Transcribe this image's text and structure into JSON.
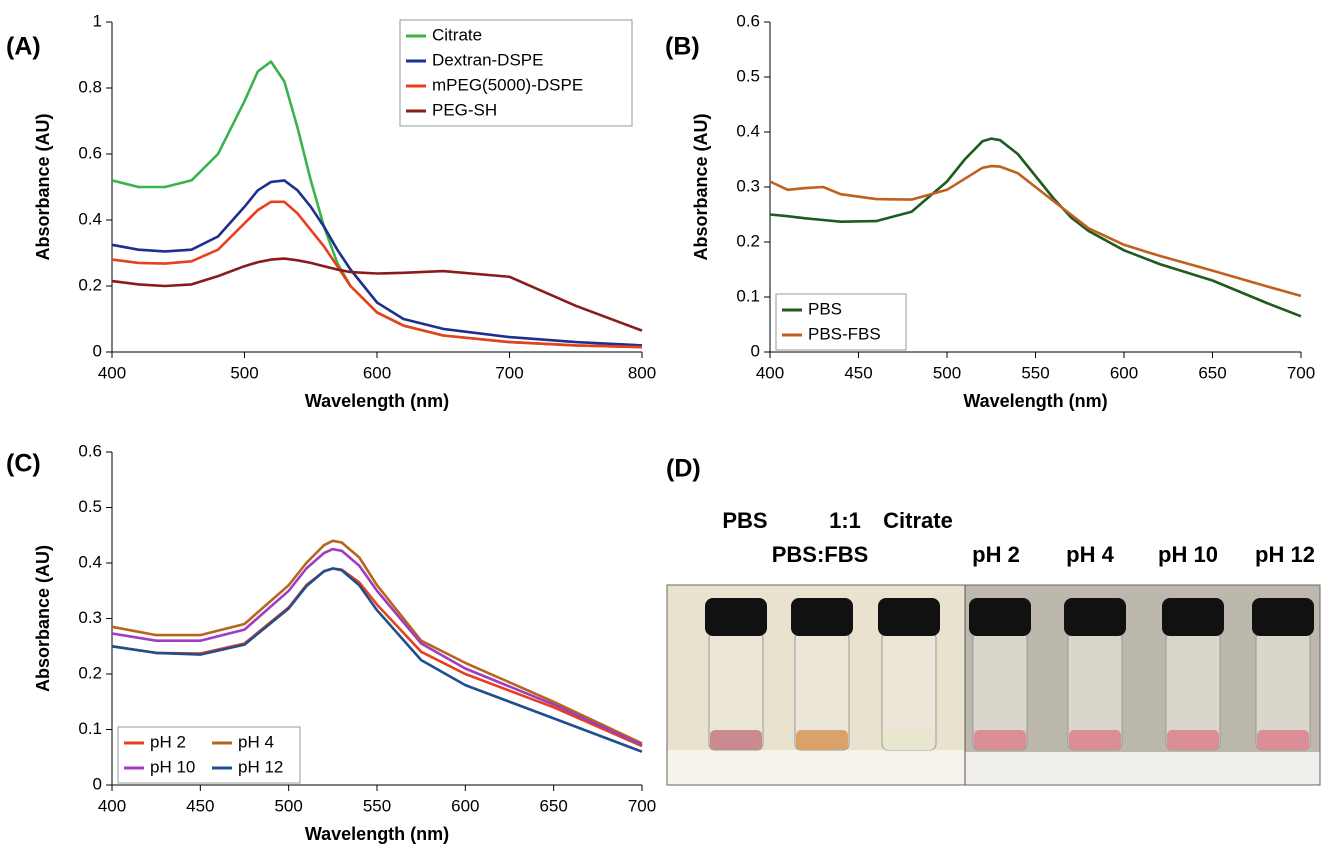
{
  "chart_data": [
    {
      "type": "line",
      "panel_label": "(A)",
      "xlabel": "Wavelength (nm)",
      "ylabel": "Absorbance (AU)",
      "xlim": [
        400,
        800
      ],
      "xticks": [
        400,
        500,
        600,
        700,
        800
      ],
      "ylim": [
        0,
        1
      ],
      "yticks": [
        0,
        0.2,
        0.4,
        0.6,
        0.8,
        1
      ],
      "legend": "upper right",
      "legend_columns": 1,
      "x": [
        400,
        420,
        440,
        460,
        480,
        500,
        510,
        520,
        530,
        540,
        550,
        560,
        570,
        580,
        600,
        620,
        650,
        700,
        750,
        800
      ],
      "series": [
        {
          "name": "Citrate",
          "color": "#3cb34a",
          "values": [
            0.52,
            0.5,
            0.5,
            0.52,
            0.6,
            0.76,
            0.85,
            0.88,
            0.82,
            0.68,
            0.52,
            0.38,
            0.27,
            0.2,
            0.12,
            0.08,
            0.05,
            0.03,
            0.02,
            0.015
          ]
        },
        {
          "name": "Dextran-DSPE",
          "color": "#1f2f8f",
          "values": [
            0.325,
            0.31,
            0.305,
            0.31,
            0.35,
            0.44,
            0.49,
            0.515,
            0.52,
            0.49,
            0.44,
            0.38,
            0.31,
            0.25,
            0.15,
            0.1,
            0.07,
            0.045,
            0.03,
            0.02
          ]
        },
        {
          "name": "mPEG(5000)-DSPE",
          "color": "#e8401c",
          "values": [
            0.28,
            0.27,
            0.268,
            0.275,
            0.31,
            0.39,
            0.43,
            0.455,
            0.455,
            0.42,
            0.37,
            0.32,
            0.26,
            0.2,
            0.12,
            0.08,
            0.05,
            0.03,
            0.02,
            0.015
          ]
        },
        {
          "name": "PEG-SH",
          "color": "#8b1a1a",
          "values": [
            0.215,
            0.205,
            0.2,
            0.205,
            0.23,
            0.26,
            0.272,
            0.28,
            0.283,
            0.278,
            0.27,
            0.26,
            0.25,
            0.242,
            0.238,
            0.24,
            0.245,
            0.228,
            0.14,
            0.065
          ]
        }
      ]
    },
    {
      "type": "line",
      "panel_label": "(B)",
      "xlabel": "Wavelength (nm)",
      "ylabel": "Absorbance (AU)",
      "xlim": [
        400,
        700
      ],
      "xticks": [
        400,
        450,
        500,
        550,
        600,
        650,
        700
      ],
      "ylim": [
        0,
        0.6
      ],
      "yticks": [
        0,
        0.1,
        0.2,
        0.3,
        0.4,
        0.5,
        0.6
      ],
      "legend": "lower left",
      "legend_columns": 1,
      "x": [
        400,
        410,
        420,
        430,
        440,
        460,
        480,
        500,
        510,
        520,
        525,
        530,
        540,
        550,
        560,
        570,
        580,
        600,
        620,
        650,
        680,
        700
      ],
      "series": [
        {
          "name": "PBS",
          "color": "#1f5a1f",
          "values": [
            0.25,
            0.247,
            0.243,
            0.24,
            0.237,
            0.238,
            0.255,
            0.31,
            0.35,
            0.383,
            0.388,
            0.385,
            0.36,
            0.32,
            0.28,
            0.245,
            0.22,
            0.185,
            0.16,
            0.13,
            0.09,
            0.065
          ]
        },
        {
          "name": "PBS-FBS",
          "color": "#c0601e",
          "values": [
            0.31,
            0.295,
            0.298,
            0.3,
            0.287,
            0.278,
            0.277,
            0.295,
            0.315,
            0.335,
            0.338,
            0.337,
            0.325,
            0.3,
            0.275,
            0.25,
            0.225,
            0.195,
            0.175,
            0.148,
            0.12,
            0.102
          ]
        }
      ]
    },
    {
      "type": "line",
      "panel_label": "(C)",
      "xlabel": "Wavelength (nm)",
      "ylabel": "Absorbance (AU)",
      "xlim": [
        400,
        700
      ],
      "xticks": [
        400,
        450,
        500,
        550,
        600,
        650,
        700
      ],
      "ylim": [
        0,
        0.6
      ],
      "yticks": [
        0,
        0.1,
        0.2,
        0.3,
        0.4,
        0.5,
        0.6
      ],
      "legend": "lower left",
      "legend_columns": 2,
      "x": [
        400,
        425,
        450,
        475,
        500,
        510,
        520,
        525,
        530,
        540,
        550,
        575,
        600,
        650,
        700
      ],
      "series": [
        {
          "name": "pH 2",
          "color": "#e8401c",
          "values": [
            0.25,
            0.238,
            0.237,
            0.255,
            0.32,
            0.36,
            0.385,
            0.39,
            0.388,
            0.365,
            0.325,
            0.24,
            0.2,
            0.14,
            0.07
          ]
        },
        {
          "name": "pH 4",
          "color": "#b5651d",
          "values": [
            0.285,
            0.27,
            0.27,
            0.29,
            0.36,
            0.4,
            0.432,
            0.44,
            0.437,
            0.41,
            0.36,
            0.26,
            0.22,
            0.15,
            0.075
          ]
        },
        {
          "name": "pH 10",
          "color": "#a03cc0",
          "values": [
            0.273,
            0.26,
            0.26,
            0.28,
            0.35,
            0.39,
            0.418,
            0.425,
            0.422,
            0.395,
            0.35,
            0.255,
            0.21,
            0.145,
            0.072
          ]
        },
        {
          "name": "pH 12",
          "color": "#1f4f8f",
          "values": [
            0.25,
            0.238,
            0.235,
            0.253,
            0.318,
            0.358,
            0.385,
            0.39,
            0.387,
            0.36,
            0.315,
            0.225,
            0.18,
            0.12,
            0.06
          ]
        }
      ]
    }
  ],
  "photo": {
    "panel_label": "(D)",
    "labels": [
      "PBS",
      "1:1",
      "Citrate",
      "PBS:FBS",
      "pH 2",
      "pH 4",
      "pH 10",
      "pH 12"
    ]
  }
}
